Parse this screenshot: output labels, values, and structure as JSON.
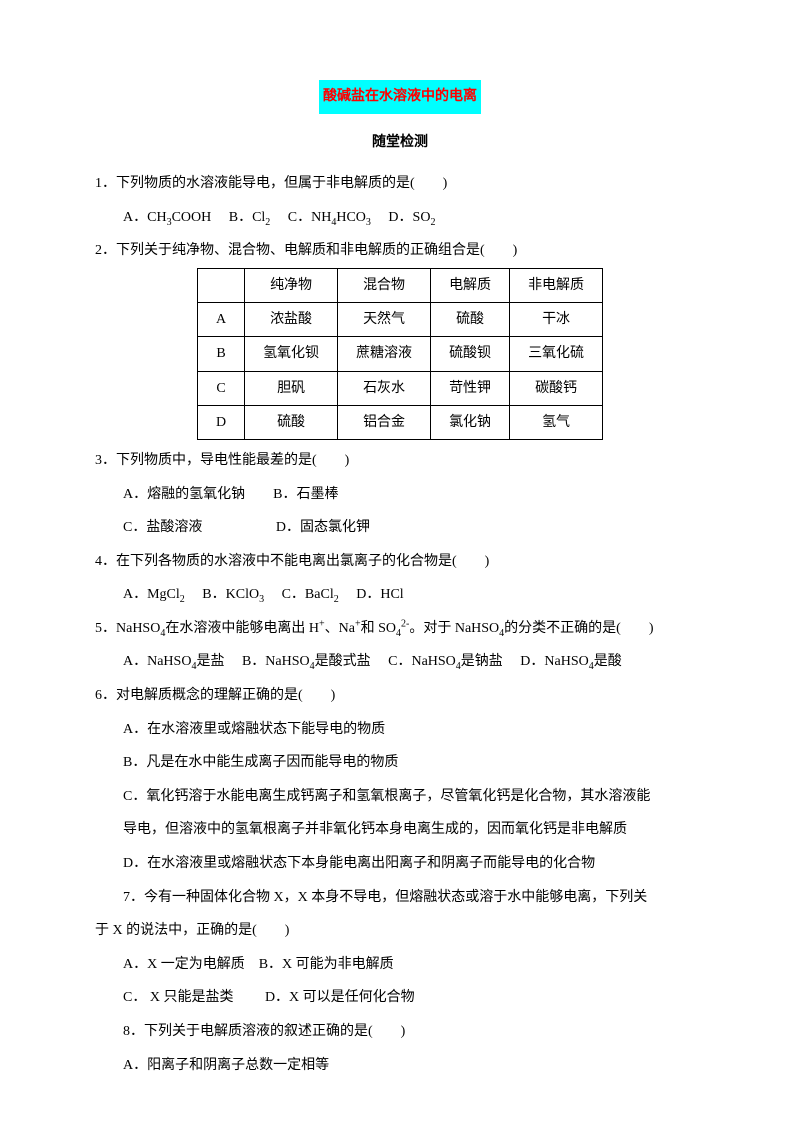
{
  "title": "酸碱盐在水溶液中的电离",
  "subtitle": "随堂检测",
  "q1": {
    "text": "1．下列物质的水溶液能导电，但属于非电解质的是(　　)",
    "options": "A．CH₃COOH　 B．Cl₂　 C．NH₄HCO₃　 D．SO₂"
  },
  "q2": {
    "text": "2．下列关于纯净物、混合物、电解质和非电解质的正确组合是(　　)"
  },
  "table": {
    "headers": [
      "",
      "纯净物",
      "混合物",
      "电解质",
      "非电解质"
    ],
    "rows": [
      [
        "A",
        "浓盐酸",
        "天然气",
        "硫酸",
        "干冰"
      ],
      [
        "B",
        "氢氧化钡",
        "蔗糖溶液",
        "硫酸钡",
        "三氧化硫"
      ],
      [
        "C",
        "胆矾",
        "石灰水",
        "苛性钾",
        "碳酸钙"
      ],
      [
        "D",
        "硫酸",
        "铝合金",
        "氯化钠",
        "氢气"
      ]
    ]
  },
  "q3": {
    "text": "3．下列物质中，导电性能最差的是(　　)",
    "line1": "A．熔融的氢氧化钠　　B．石墨棒",
    "line2": "C．盐酸溶液　 　　　　D．固态氯化钾"
  },
  "q4": {
    "text": "4．在下列各物质的水溶液中不能电离出氯离子的化合物是(　　)",
    "options": "A．MgCl₂　 B．KClO₃　 C．BaCl₂　 D．HCl"
  },
  "q5": {
    "text_part1": "5．NaHSO₄在水溶液中能够电离出 H⁺、Na⁺和 SO₄²⁻。对于 NaHSO₄的分类不正确的是(　　)",
    "options": "A．NaHSO₄是盐　 B．NaHSO₄是酸式盐　 C．NaHSO₄是钠盐　 D．NaHSO₄是酸"
  },
  "q6": {
    "text": "6．对电解质概念的理解正确的是(　　)",
    "a": "A．在水溶液里或熔融状态下能导电的物质",
    "b": "B．凡是在水中能生成离子因而能导电的物质",
    "c": "C．氧化钙溶于水能电离生成钙离子和氢氧根离子，尽管氧化钙是化合物，其水溶液能",
    "c2": "导电，但溶液中的氢氧根离子并非氧化钙本身电离生成的，因而氧化钙是非电解质",
    "d": "D．在水溶液里或熔融状态下本身能电离出阳离子和阴离子而能导电的化合物"
  },
  "q7": {
    "text1": "7．今有一种固体化合物 X，X 本身不导电，但熔融状态或溶于水中能够电离，下列关",
    "text2": "于 X 的说法中，正确的是(　　)",
    "line1": "A．X 一定为电解质　B．X 可能为非电解质",
    "line2": "C． X 只能是盐类　 　D．X 可以是任何化合物"
  },
  "q8": {
    "text": "8．下列关于电解质溶液的叙述正确的是(　　)",
    "a": "A．阳离子和阴离子总数一定相等"
  }
}
